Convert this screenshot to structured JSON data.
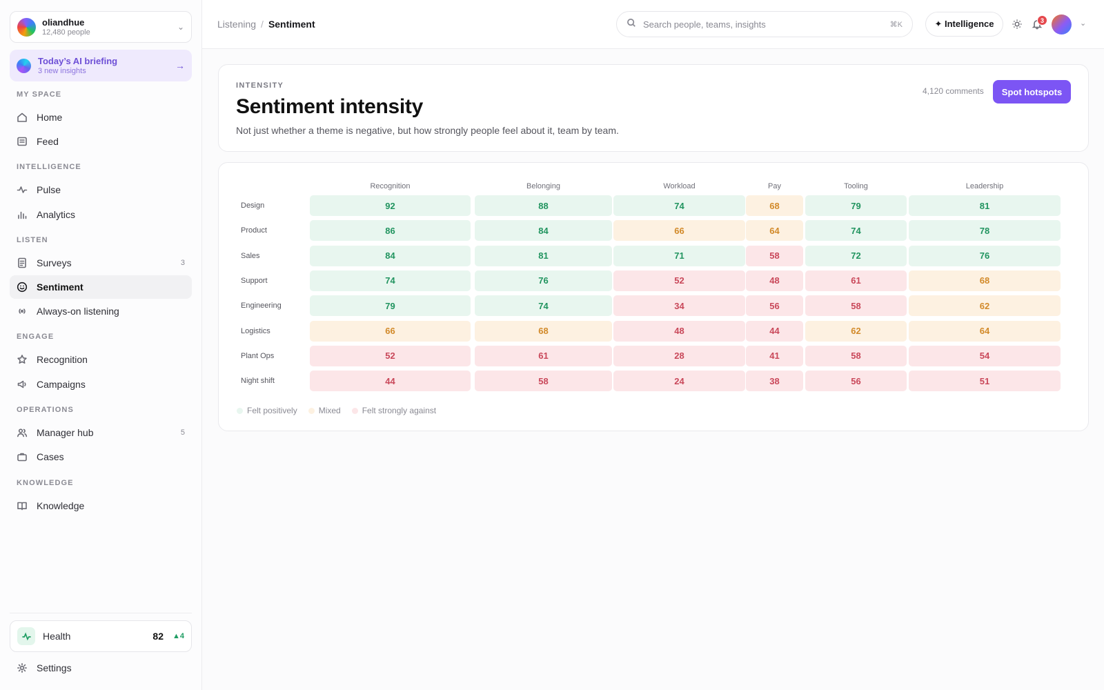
{
  "org": {
    "name": "oliandhue",
    "people": "12,480 people"
  },
  "briefing": {
    "title": "Today’s AI briefing",
    "subtitle": "3 new insights"
  },
  "sidebar": {
    "sections": {
      "my_space": "MY SPACE",
      "intelligence": "INTELLIGENCE",
      "listen": "LISTEN",
      "engage": "ENGAGE",
      "operations": "OPERATIONS",
      "knowledge": "KNOWLEDGE"
    },
    "items": {
      "home": "Home",
      "feed": "Feed",
      "pulse": "Pulse",
      "analytics": "Analytics",
      "surveys": "Surveys",
      "surveys_count": "3",
      "sentiment": "Sentiment",
      "always_on": "Always-on listening",
      "recognition": "Recognition",
      "campaigns": "Campaigns",
      "manager_hub": "Manager hub",
      "manager_hub_count": "5",
      "cases": "Cases",
      "knowledge": "Knowledge"
    },
    "health": {
      "label": "Health",
      "score": "82",
      "delta": "▲4"
    },
    "settings": "Settings"
  },
  "topbar": {
    "breadcrumb_parent": "Listening",
    "breadcrumb_sep": "/",
    "breadcrumb_current": "Sentiment",
    "search_placeholder": "Search people, teams, insights",
    "search_shortcut": "⌘K",
    "intelligence_label": "✦ Intelligence",
    "notification_count": "3"
  },
  "header": {
    "eyebrow": "INTENSITY",
    "title": "Sentiment intensity",
    "description": "Not just whether a theme is negative, but how strongly people feel about it, team by team.",
    "comments": "4,120 comments",
    "cta": "Spot hotspots"
  },
  "chart_data": {
    "type": "heatmap",
    "columns": [
      "Recognition",
      "Belonging",
      "Workload",
      "Pay",
      "Tooling",
      "Leadership"
    ],
    "rows": [
      "Design",
      "Product",
      "Sales",
      "Support",
      "Engineering",
      "Logistics",
      "Plant Ops",
      "Night shift"
    ],
    "values": [
      [
        92,
        88,
        74,
        68,
        79,
        81
      ],
      [
        86,
        84,
        66,
        64,
        74,
        78
      ],
      [
        84,
        81,
        71,
        58,
        72,
        76
      ],
      [
        74,
        76,
        52,
        48,
        61,
        68
      ],
      [
        79,
        74,
        34,
        56,
        58,
        62
      ],
      [
        66,
        68,
        48,
        44,
        62,
        64
      ],
      [
        52,
        61,
        28,
        41,
        58,
        54
      ],
      [
        44,
        58,
        24,
        38,
        56,
        51
      ]
    ],
    "legend": [
      "Felt positively",
      "Mixed",
      "Felt strongly against"
    ],
    "colors": {
      "positive_bg": "#e8f6ef",
      "positive_text": "#21945f",
      "mixed_bg": "#fdf1e1",
      "mixed_text": "#d28a2a",
      "negative_bg": "#fce6e8",
      "negative_text": "#c9485a"
    }
  },
  "colors": {
    "accent": "#7c55f4",
    "brand_soft": "#efeafd"
  }
}
